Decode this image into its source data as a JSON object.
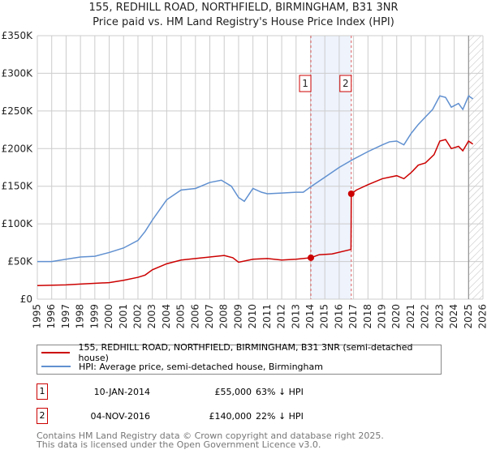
{
  "chart_data": {
    "type": "line",
    "title": "155, REDHILL ROAD, NORTHFIELD, BIRMINGHAM, B31 3NR",
    "subtitle": "Price paid vs. HM Land Registry's House Price Index (HPI)",
    "xlim": [
      1995,
      2026
    ],
    "ylim": [
      0,
      350000
    ],
    "x_ticks": [
      "1995",
      "1996",
      "1997",
      "1998",
      "1999",
      "2000",
      "2001",
      "2002",
      "2003",
      "2004",
      "2005",
      "2006",
      "2007",
      "2008",
      "2009",
      "2010",
      "2011",
      "2012",
      "2013",
      "2014",
      "2015",
      "2016",
      "2017",
      "2018",
      "2019",
      "2020",
      "2021",
      "2022",
      "2023",
      "2024",
      "2025",
      "2026"
    ],
    "y_ticks": [
      {
        "v": 0,
        "label": "£0"
      },
      {
        "v": 50000,
        "label": "£50K"
      },
      {
        "v": 100000,
        "label": "£100K"
      },
      {
        "v": 150000,
        "label": "£150K"
      },
      {
        "v": 200000,
        "label": "£200K"
      },
      {
        "v": 250000,
        "label": "£250K"
      },
      {
        "v": 300000,
        "label": "£300K"
      },
      {
        "v": 350000,
        "label": "£350K"
      }
    ],
    "grid": true,
    "shaded_range": [
      2014.03,
      2016.84
    ],
    "future_hatch_from": 2025.0,
    "series": [
      {
        "name": "155, REDHILL ROAD, NORTHFIELD, BIRMINGHAM, B31 3NR (semi-detached house)",
        "color": "#cc0000",
        "x": [
          1995,
          1997,
          1998,
          2000,
          2001,
          2002,
          2002.5,
          2003,
          2004,
          2005,
          2006,
          2007,
          2008,
          2008.6,
          2009,
          2010,
          2011,
          2012,
          2013,
          2014.03,
          2014.6,
          2015.5,
          2016.82,
          2016.84,
          2017.2,
          2018,
          2019,
          2020,
          2020.5,
          2021,
          2021.5,
          2022,
          2022.6,
          2023,
          2023.4,
          2023.8,
          2024.3,
          2024.6,
          2025,
          2025.3
        ],
        "y": [
          18000,
          19000,
          20000,
          22000,
          25000,
          29000,
          32000,
          39000,
          47000,
          52000,
          54000,
          56000,
          58000,
          55000,
          49000,
          53000,
          54000,
          52000,
          53000,
          55000,
          59000,
          60000,
          66000,
          140000,
          145000,
          152000,
          160000,
          164000,
          160000,
          168000,
          178000,
          181000,
          192000,
          210000,
          212000,
          200000,
          203000,
          197000,
          210000,
          206000
        ]
      },
      {
        "name": "HPI: Average price, semi-detached house, Birmingham",
        "color": "#6090d0",
        "x": [
          1995,
          1996,
          1997,
          1998,
          1999,
          2000,
          2001,
          2002,
          2002.5,
          2003,
          2004,
          2005,
          2006,
          2007,
          2007.8,
          2008.5,
          2009,
          2009.4,
          2010,
          2010.6,
          2011,
          2012,
          2013,
          2013.5,
          2014,
          2015,
          2016,
          2017,
          2018,
          2019,
          2019.5,
          2020,
          2020.5,
          2021,
          2021.5,
          2022,
          2022.5,
          2023,
          2023.4,
          2023.8,
          2024.3,
          2024.6,
          2025,
          2025.3
        ],
        "y": [
          50000,
          50000,
          53000,
          56000,
          57000,
          62000,
          68000,
          78000,
          90000,
          105000,
          132000,
          145000,
          147000,
          155000,
          158000,
          150000,
          135000,
          130000,
          147000,
          142000,
          140000,
          141000,
          142000,
          142000,
          149000,
          162000,
          175000,
          186000,
          196000,
          205000,
          209000,
          210000,
          205000,
          220000,
          232000,
          242000,
          252000,
          270000,
          268000,
          255000,
          260000,
          252000,
          270000,
          266000
        ]
      }
    ],
    "annotations": [
      {
        "label": "1",
        "x": 2014.03,
        "y": 55000
      },
      {
        "label": "2",
        "x": 2016.84,
        "y": 140000
      }
    ]
  },
  "legend": {
    "property": "155, REDHILL ROAD, NORTHFIELD, BIRMINGHAM, B31 3NR (semi-detached house)",
    "hpi": "HPI: Average price, semi-detached house, Birmingham"
  },
  "transactions": [
    {
      "num": "1",
      "date": "10-JAN-2014",
      "price": "£55,000",
      "hpi": "63% ↓ HPI"
    },
    {
      "num": "2",
      "date": "04-NOV-2016",
      "price": "£140,000",
      "hpi": "22% ↓ HPI"
    }
  ],
  "footer": {
    "line1": "Contains HM Land Registry data © Crown copyright and database right 2025.",
    "line2": "This data is licensed under the Open Government Licence v3.0."
  }
}
